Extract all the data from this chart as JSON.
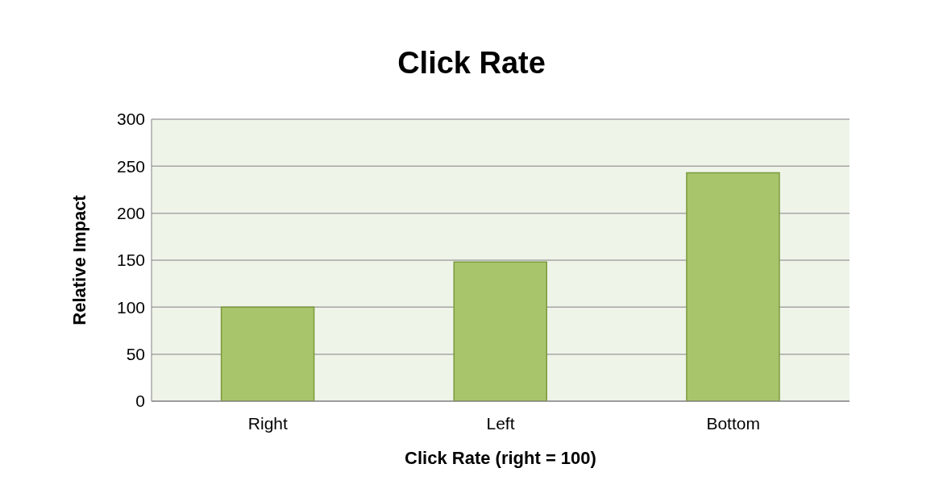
{
  "chart_data": {
    "type": "bar",
    "title": "Click Rate",
    "categories": [
      "Right",
      "Left",
      "Bottom"
    ],
    "values": [
      100,
      148,
      243
    ],
    "color": "#a9c56b",
    "xlabel": "Click Rate (right = 100)",
    "ylabel": "Relative Impact",
    "ylim": [
      0,
      300
    ],
    "yticks": [
      0,
      50,
      100,
      150,
      200,
      250,
      300
    ],
    "grid": "y"
  }
}
